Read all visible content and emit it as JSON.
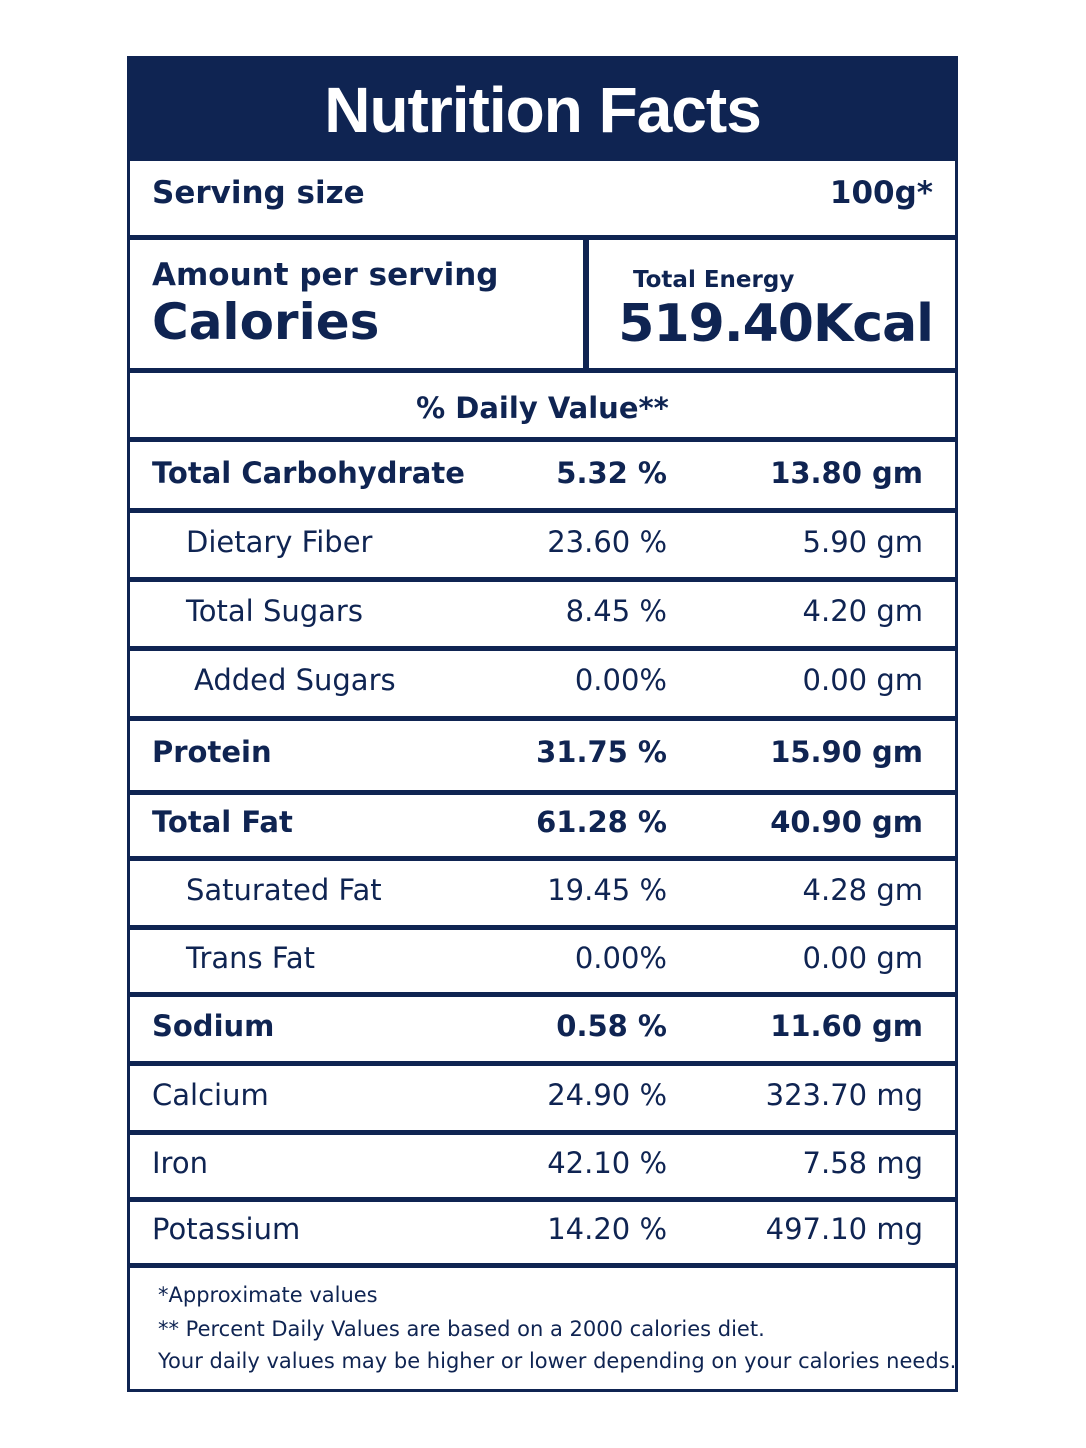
{
  "title": "Nutrition Facts",
  "serving": {
    "label": "Serving size",
    "value": "100g*"
  },
  "calories": {
    "amount_label": "Amount per serving",
    "calories_label": "Calories",
    "energy_label": "Total Energy",
    "energy_value": "519.40Kcal"
  },
  "daily_value_header": "% Daily Value**",
  "rows": [
    {
      "name": "Total Carbohydrate",
      "percent": "5.32 %",
      "amount": "13.80 gm",
      "bold": true,
      "indent": 0
    },
    {
      "name": "Dietary Fiber",
      "percent": "23.60 %",
      "amount": "5.90 gm",
      "bold": false,
      "indent": 1
    },
    {
      "name": "Total Sugars",
      "percent": "8.45 %",
      "amount": "4.20 gm",
      "bold": false,
      "indent": 1
    },
    {
      "name": "Added Sugars",
      "percent": "0.00%",
      "amount": "0.00 gm",
      "bold": false,
      "indent": 2
    },
    {
      "name": "Protein",
      "percent": "31.75 %",
      "amount": "15.90 gm",
      "bold": true,
      "indent": 0
    },
    {
      "name": "Total Fat",
      "percent": "61.28 %",
      "amount": "40.90 gm",
      "bold": true,
      "indent": 0
    },
    {
      "name": "Saturated Fat",
      "percent": "19.45 %",
      "amount": "4.28 gm",
      "bold": false,
      "indent": 1
    },
    {
      "name": "Trans Fat",
      "percent": "0.00%",
      "amount": "0.00 gm",
      "bold": false,
      "indent": 1
    },
    {
      "name": "Sodium",
      "percent": "0.58 %",
      "amount": "11.60 gm",
      "bold": true,
      "indent": 0
    },
    {
      "name": "Calcium",
      "percent": "24.90 %",
      "amount": "323.70 mg",
      "bold": false,
      "indent": 0
    },
    {
      "name": "Iron",
      "percent": "42.10 %",
      "amount": "7.58 mg",
      "bold": false,
      "indent": 0
    },
    {
      "name": "Potassium",
      "percent": "14.20 %",
      "amount": "497.10 mg",
      "bold": false,
      "indent": 0
    }
  ],
  "footnotes": {
    "line1": "*Approximate values",
    "line2": "** Percent Daily Values are based on a 2000 calories diet.",
    "line3": "Your daily values may be higher or lower depending on your calories needs."
  },
  "colors": {
    "navy": "#0f2452",
    "background": "#ffffff"
  }
}
